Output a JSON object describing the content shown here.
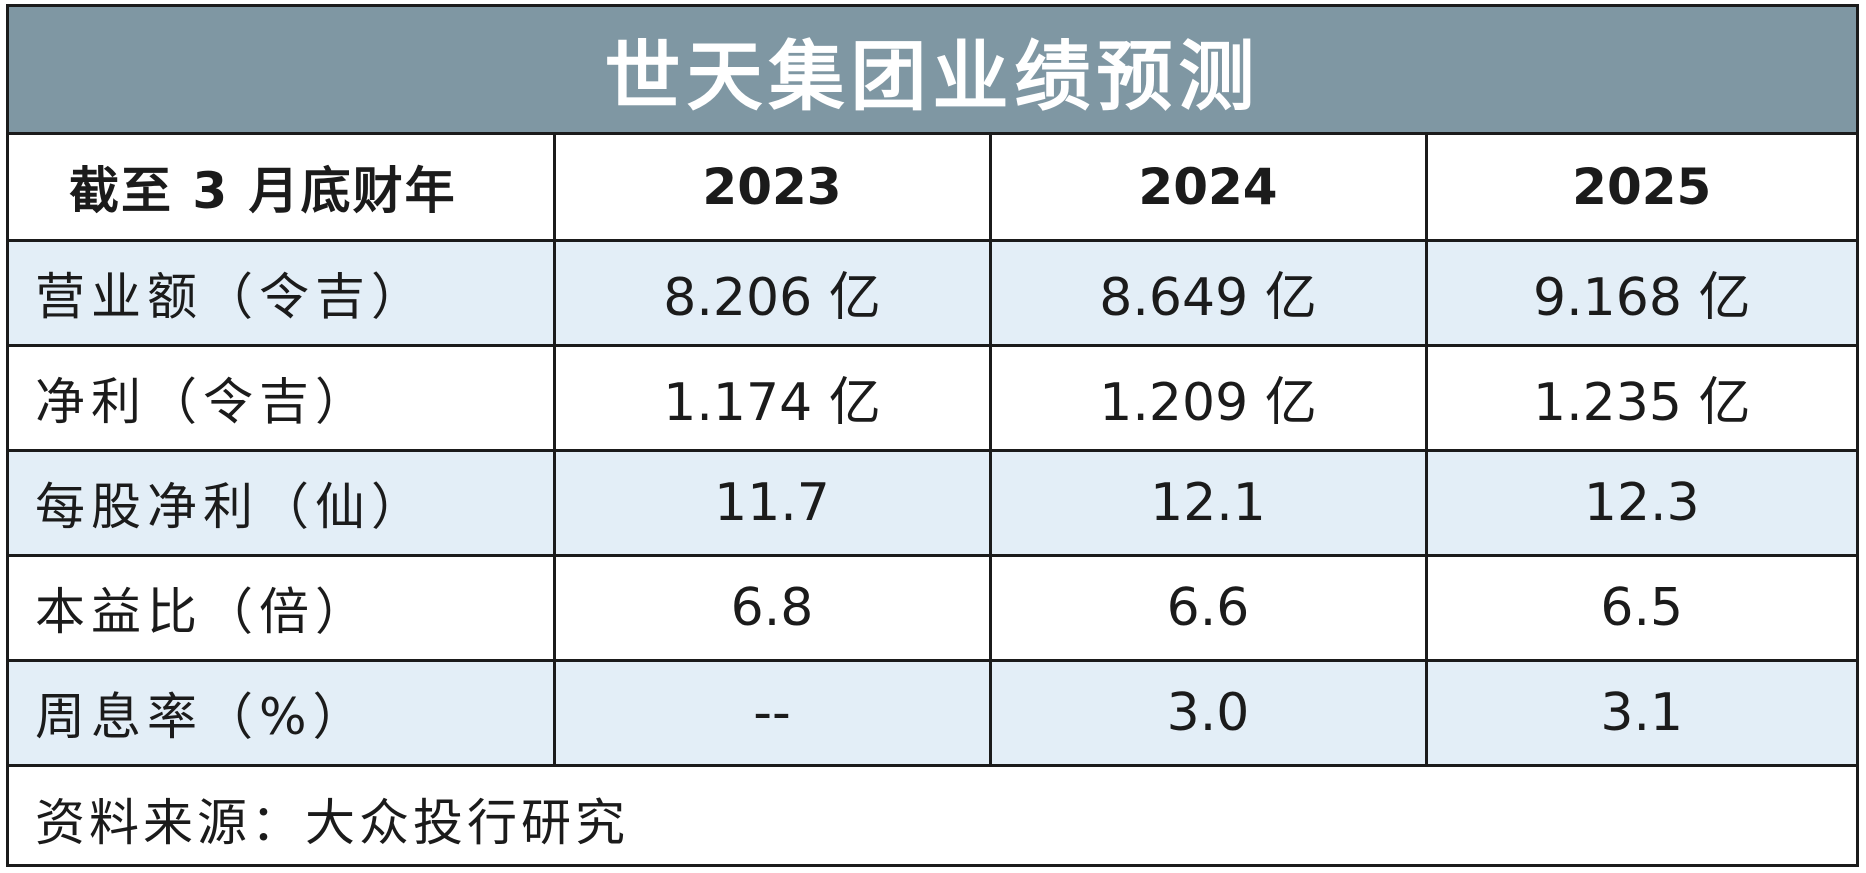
{
  "title": "世天集团业绩预测",
  "header": {
    "label": "截至 3 月底财年",
    "years": [
      "2023",
      "2024",
      "2025"
    ]
  },
  "rows": [
    {
      "label": "营业额（令吉）",
      "values": [
        "8.206 亿",
        "8.649 亿",
        "9.168 亿"
      ]
    },
    {
      "label": "净利（令吉）",
      "values": [
        "1.174 亿",
        "1.209 亿",
        "1.235 亿"
      ]
    },
    {
      "label": "每股净利（仙）",
      "values": [
        "11.7",
        "12.1",
        "12.3"
      ]
    },
    {
      "label": "本益比（倍）",
      "values": [
        "6.8",
        "6.6",
        "6.5"
      ]
    },
    {
      "label": "周息率（%）",
      "values": [
        "--",
        "3.0",
        "3.1"
      ]
    }
  ],
  "source": "资料来源：大众投行研究",
  "colors": {
    "title_bg": "#7f97a3",
    "shaded_row": "#e3eef7",
    "border": "#1b1b1b"
  }
}
